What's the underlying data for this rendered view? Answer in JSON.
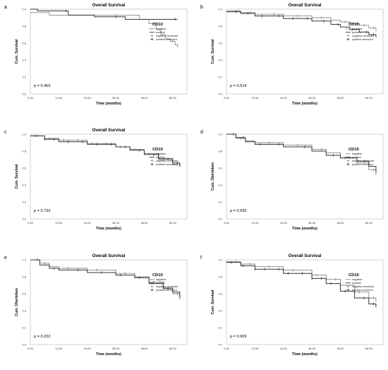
{
  "chart_data": [
    {
      "panel_letter": "a",
      "type": "line",
      "title": "Overall Survival",
      "xlabel": "Time (months)",
      "ylabel": "Cum. Survival",
      "xlim": [
        0,
        66
      ],
      "ylim": [
        0,
        1.0
      ],
      "x_ticks": [
        "0.00",
        "12.00",
        "24.00",
        "36.00",
        "48.00",
        "60.00"
      ],
      "y_ticks": [
        "0.0",
        "0.2",
        "0.4",
        "0.6",
        "0.8",
        "1.0"
      ],
      "legend_title": "CD10",
      "legend": [
        "negative",
        "positive",
        "negative-censored",
        "positive-censored"
      ],
      "p_value": "p = 0.469",
      "series": [
        {
          "name": "negative",
          "x": [
            0,
            8,
            46,
            50,
            53,
            55,
            57,
            59,
            61,
            62
          ],
          "y": [
            0.96,
            0.93,
            0.88,
            0.83,
            0.76,
            0.7,
            0.65,
            0.62,
            0.58,
            0.55
          ],
          "censored_x": [
            60
          ]
        },
        {
          "name": "positive",
          "x": [
            0,
            3,
            16,
            27,
            40,
            62
          ],
          "y": [
            1.0,
            0.98,
            0.93,
            0.91,
            0.88,
            0.88
          ],
          "censored_x": [
            15,
            36,
            61
          ]
        }
      ]
    },
    {
      "panel_letter": "b",
      "type": "line",
      "title": "Overall Survival",
      "xlabel": "Time (months)",
      "ylabel": "Cum. Survival",
      "xlim": [
        0,
        66
      ],
      "ylim": [
        0,
        1.0
      ],
      "x_ticks": [
        "0.00",
        "12.00",
        "24.00",
        "36.00",
        "48.00",
        "60.00"
      ],
      "y_ticks": [
        "0.0",
        "0.2",
        "0.4",
        "0.6",
        "0.8",
        "1.0"
      ],
      "legend_title": "CD10",
      "legend": [
        "negative",
        "positive",
        "negative-censored",
        "positive-censored"
      ],
      "p_value": "p = 0.514",
      "series": [
        {
          "name": "negative",
          "x": [
            0,
            6,
            12,
            24,
            36,
            44,
            48,
            52,
            56,
            60,
            63
          ],
          "y": [
            0.98,
            0.96,
            0.94,
            0.92,
            0.9,
            0.87,
            0.85,
            0.83,
            0.81,
            0.78,
            0.74
          ],
          "censored_x": [
            5,
            10,
            20,
            30,
            40,
            50,
            58,
            62
          ]
        },
        {
          "name": "positive",
          "x": [
            0,
            6,
            12,
            24,
            36,
            44,
            48,
            52,
            56,
            60,
            63
          ],
          "y": [
            0.97,
            0.95,
            0.92,
            0.89,
            0.86,
            0.82,
            0.79,
            0.76,
            0.73,
            0.7,
            0.67
          ],
          "censored_x": [
            4,
            9,
            15,
            22,
            28,
            34,
            41,
            47,
            53,
            59,
            62
          ]
        }
      ]
    },
    {
      "panel_letter": "c",
      "type": "line",
      "title": "Overall Survival",
      "xlabel": "Time (months)",
      "ylabel": "Cum. Survival",
      "xlim": [
        0,
        66
      ],
      "ylim": [
        0,
        1.0
      ],
      "x_ticks": [
        "0.00",
        "12.00",
        "24.00",
        "36.00",
        "48.00",
        "60.00"
      ],
      "y_ticks": [
        "0.0",
        "0.2",
        "0.4",
        "0.6",
        "0.8",
        "1.0"
      ],
      "legend_title": "CD10",
      "legend": [
        "negative",
        "positive",
        "negative-censored",
        "positive-censored"
      ],
      "p_value": "p = 0.733",
      "series": [
        {
          "name": "negative",
          "x": [
            0,
            6,
            12,
            24,
            36,
            42,
            48,
            54,
            60,
            63
          ],
          "y": [
            0.98,
            0.95,
            0.93,
            0.89,
            0.85,
            0.82,
            0.77,
            0.7,
            0.64,
            0.61
          ],
          "censored_x": [
            3,
            8,
            14,
            20,
            26,
            32,
            38,
            44,
            50,
            56,
            62
          ]
        },
        {
          "name": "positive",
          "x": [
            0,
            6,
            12,
            24,
            36,
            42,
            48,
            54,
            60,
            63
          ],
          "y": [
            0.98,
            0.94,
            0.91,
            0.88,
            0.85,
            0.81,
            0.76,
            0.71,
            0.66,
            0.62
          ],
          "censored_x": [
            2,
            6,
            10,
            16,
            22,
            28,
            34,
            40,
            46,
            52,
            58,
            62
          ]
        }
      ]
    },
    {
      "panel_letter": "d",
      "type": "line",
      "title": "",
      "xlabel": "Time (months)",
      "ylabel": "Cum. Überleben",
      "xlim": [
        0,
        66
      ],
      "ylim": [
        0,
        1.0
      ],
      "x_ticks": [
        "0.00",
        "12.00",
        "24.00",
        "36.00",
        "48.00",
        "60.00"
      ],
      "y_ticks": [
        "0.0",
        "0.2",
        "0.4",
        "0.6",
        "0.8",
        "1.0"
      ],
      "legend_title": "CD10",
      "legend": [
        "negative",
        "positive",
        "negative-censored",
        "positive-censored"
      ],
      "p_value": "p = 0.930",
      "series": [
        {
          "name": "negative",
          "x": [
            0,
            4,
            8,
            12,
            24,
            36,
            42,
            48,
            55,
            60,
            63
          ],
          "y": [
            1.0,
            0.95,
            0.92,
            0.9,
            0.87,
            0.82,
            0.78,
            0.72,
            0.66,
            0.58,
            0.52
          ],
          "censored_x": [
            6,
            18,
            30,
            40,
            52,
            62
          ]
        },
        {
          "name": "positive",
          "x": [
            0,
            4,
            8,
            12,
            24,
            36,
            42,
            48,
            55,
            60,
            63
          ],
          "y": [
            1.0,
            0.96,
            0.91,
            0.88,
            0.85,
            0.8,
            0.75,
            0.72,
            0.68,
            0.62,
            0.55
          ],
          "censored_x": [
            3,
            7,
            14,
            22,
            33,
            45,
            50,
            58
          ]
        }
      ]
    },
    {
      "panel_letter": "e",
      "type": "line",
      "title": "Overall Survival",
      "xlabel": "Time (months)",
      "ylabel": "Cum. Überleben",
      "xlim": [
        0,
        66
      ],
      "ylim": [
        0,
        1.0
      ],
      "x_ticks": [
        "0.00",
        "12.00",
        "24.00",
        "36.00",
        "48.00",
        "60.00"
      ],
      "y_ticks": [
        "0.0",
        "0.2",
        "0.4",
        "0.6",
        "0.8",
        "1.0"
      ],
      "legend_title": "CD10",
      "legend": [
        "negative",
        "positive",
        "negative-censored",
        "positive-censored"
      ],
      "p_value": "p = 0.202",
      "series": [
        {
          "name": "negative",
          "x": [
            0,
            4,
            8,
            12,
            24,
            36,
            44,
            50,
            56,
            60,
            63
          ],
          "y": [
            1.0,
            0.96,
            0.92,
            0.9,
            0.88,
            0.84,
            0.8,
            0.74,
            0.67,
            0.6,
            0.53
          ],
          "censored_x": [
            6,
            16,
            28,
            40,
            52,
            62
          ]
        },
        {
          "name": "positive",
          "x": [
            0,
            4,
            8,
            12,
            24,
            36,
            44,
            50,
            56,
            60,
            63
          ],
          "y": [
            1.0,
            0.94,
            0.9,
            0.88,
            0.85,
            0.82,
            0.79,
            0.72,
            0.66,
            0.62,
            0.55
          ],
          "censored_x": [
            3,
            10,
            20,
            30,
            38,
            46,
            58
          ]
        }
      ]
    },
    {
      "panel_letter": "f",
      "type": "line",
      "title": "Overall Survival",
      "xlabel": "Time (months)",
      "ylabel": "Cum. Survival",
      "xlim": [
        0,
        66
      ],
      "ylim": [
        0,
        1.0
      ],
      "x_ticks": [
        "0.00",
        "12.00",
        "24.00",
        "36.00",
        "48.00",
        "60.00"
      ],
      "y_ticks": [
        "0.0",
        "0.2",
        "0.4",
        "0.6",
        "0.8",
        "1.0"
      ],
      "legend_title": "CD10",
      "legend": [
        "negative",
        "positive",
        "negative-censored",
        "positive-censored"
      ],
      "p_value": "p = 0.909",
      "series": [
        {
          "name": "negative",
          "x": [
            0,
            6,
            12,
            24,
            36,
            42,
            48,
            54,
            60,
            63
          ],
          "y": [
            0.98,
            0.95,
            0.92,
            0.88,
            0.82,
            0.77,
            0.7,
            0.62,
            0.55,
            0.5
          ],
          "censored_x": [
            4,
            10,
            18,
            28,
            38,
            46,
            56,
            62
          ]
        },
        {
          "name": "positive",
          "x": [
            0,
            6,
            12,
            24,
            36,
            42,
            48,
            54,
            60,
            63
          ],
          "y": [
            0.97,
            0.93,
            0.89,
            0.84,
            0.78,
            0.72,
            0.63,
            0.55,
            0.48,
            0.44
          ],
          "censored_x": [
            2,
            7,
            12,
            16,
            22,
            26,
            32,
            36,
            40,
            44,
            50,
            58,
            62
          ]
        }
      ]
    }
  ]
}
